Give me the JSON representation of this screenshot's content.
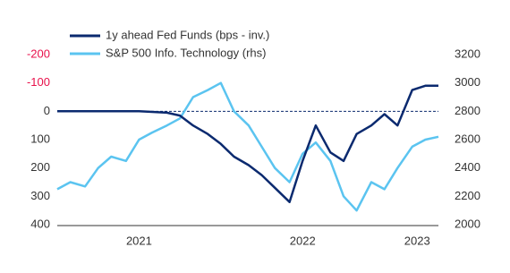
{
  "chart_data": {
    "type": "line",
    "x": [
      2021.0,
      2021.08,
      2021.17,
      2021.25,
      2021.33,
      2021.42,
      2021.5,
      2021.58,
      2021.67,
      2021.75,
      2021.83,
      2021.92,
      2022.0,
      2022.08,
      2022.17,
      2022.25,
      2022.33,
      2022.42,
      2022.5,
      2022.58,
      2022.67,
      2022.75,
      2022.83,
      2022.92,
      2023.0,
      2023.08,
      2023.17,
      2023.25,
      2023.33
    ],
    "series": [
      {
        "name": "1y ahead Fed Funds (bps - inv.)",
        "color": "#0b2a6f",
        "axis": "y",
        "values": [
          0,
          0,
          0,
          0,
          0,
          0,
          0,
          2,
          5,
          15,
          50,
          80,
          115,
          160,
          190,
          225,
          270,
          320,
          175,
          50,
          145,
          175,
          80,
          50,
          10,
          50,
          -75,
          -90,
          -90
        ]
      },
      {
        "name": "S&P 500 Info. Technology (rhs)",
        "color": "#5bc4f0",
        "axis": "y2",
        "values": [
          2250,
          2300,
          2270,
          2400,
          2480,
          2450,
          2600,
          2650,
          2700,
          2750,
          2900,
          2950,
          3000,
          2800,
          2700,
          2550,
          2400,
          2300,
          2500,
          2580,
          2450,
          2200,
          2100,
          2300,
          2250,
          2400,
          2550,
          2600,
          2620
        ]
      }
    ],
    "xlim": [
      2021.0,
      2023.33
    ],
    "xticks": [
      {
        "value": 2021.5,
        "label": "2021"
      },
      {
        "value": 2022.5,
        "label": "2022"
      },
      {
        "value": 2023.2,
        "label": "2023"
      }
    ],
    "ylim": [
      400,
      -200
    ],
    "yticks": [
      -200,
      -100,
      0,
      100,
      200,
      300,
      400
    ],
    "y2lim": [
      2000,
      3200
    ],
    "y2ticks": [
      2000,
      2200,
      2400,
      2600,
      2800,
      3000,
      3200
    ],
    "hline": 0,
    "negative_tick_color": "#e8114b",
    "legend": "top-left"
  }
}
